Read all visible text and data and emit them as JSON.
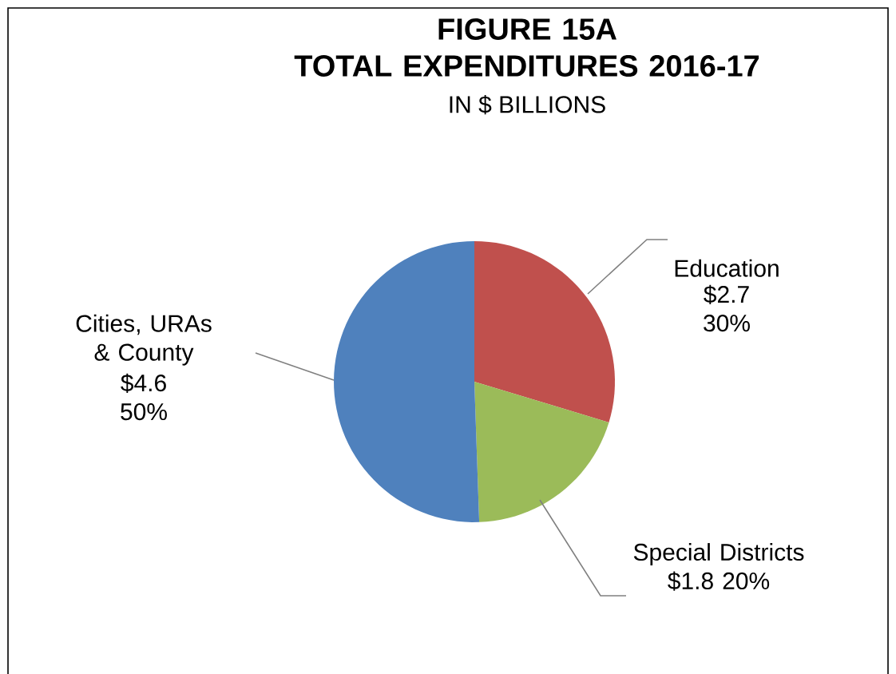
{
  "chart_data": {
    "type": "pie",
    "title": "FIGURE 15A\nTOTAL EXPENDITURES 2016-17",
    "subtitle": "IN $ BILLIONS",
    "categories": [
      "Education",
      "Special Districts",
      "Cities, URAs & County"
    ],
    "values": [
      2.7,
      1.8,
      4.6
    ],
    "value_labels": [
      "$2.7 30%",
      "$1.8 20%",
      "$4.6 50%"
    ],
    "colors": [
      "#c0504d",
      "#9bbb59",
      "#4f81bd"
    ]
  }
}
